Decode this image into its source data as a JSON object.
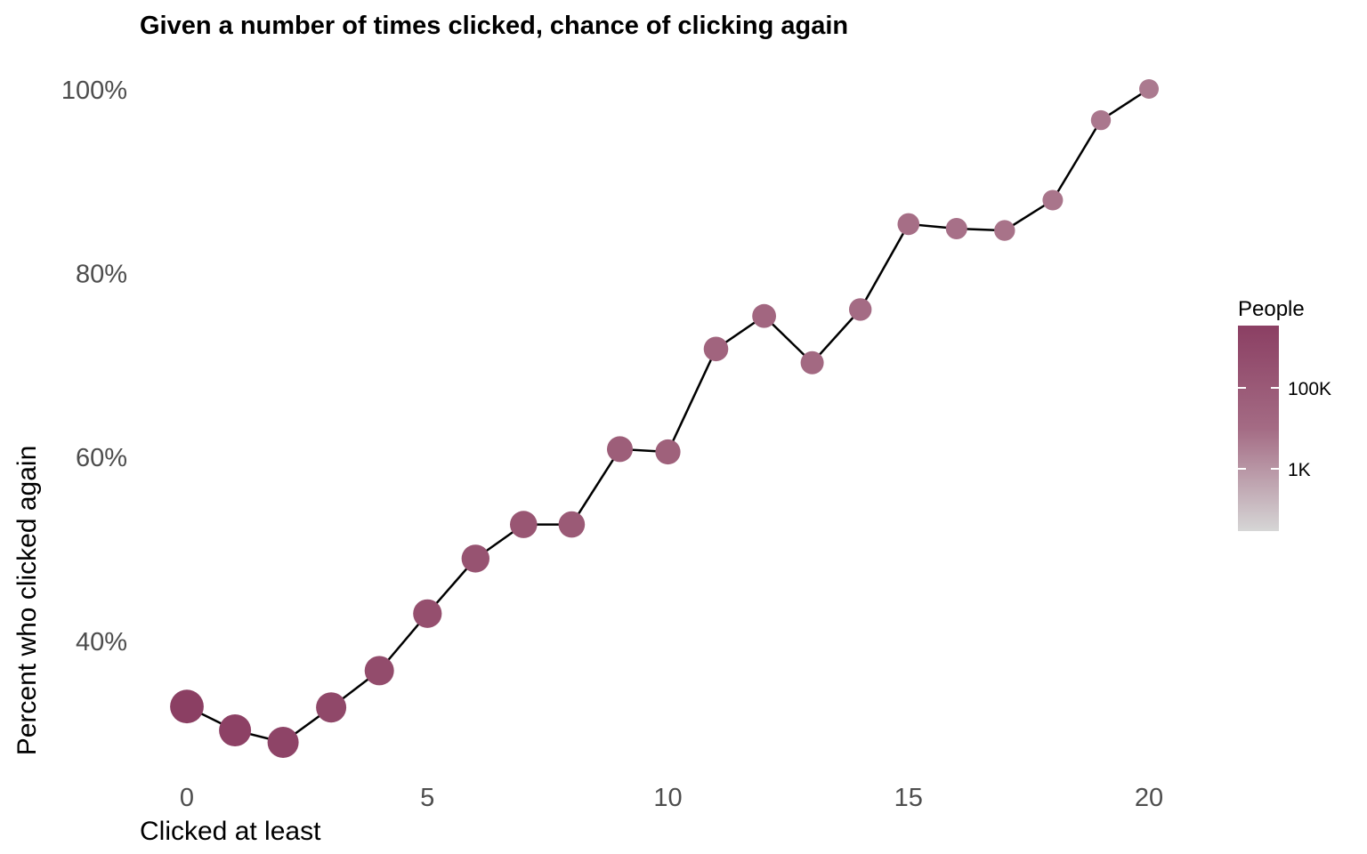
{
  "chart_data": {
    "type": "scatter",
    "title": "Given a number of times clicked, chance of clicking again",
    "xlabel": "Clicked at least",
    "ylabel": "Percent who clicked again",
    "xlim": [
      -0.5,
      21
    ],
    "ylim": [
      26,
      101
    ],
    "x_ticks": [
      0,
      5,
      10,
      15,
      20
    ],
    "x_tick_labels": [
      "0",
      "5",
      "10",
      "15",
      "20"
    ],
    "y_ticks": [
      40,
      60,
      80,
      100
    ],
    "y_tick_labels": [
      "40%",
      "60%",
      "80%",
      "100%"
    ],
    "grid": false,
    "connected_line": true,
    "line_color": "#000000",
    "x": [
      0,
      1,
      2,
      3,
      4,
      5,
      6,
      7,
      8,
      9,
      10,
      11,
      12,
      13,
      14,
      15,
      16,
      17,
      18,
      19,
      20
    ],
    "y": [
      32.8,
      30.2,
      28.9,
      32.7,
      36.7,
      42.9,
      48.9,
      52.6,
      52.6,
      60.8,
      60.5,
      71.7,
      75.3,
      70.2,
      76.0,
      85.3,
      84.8,
      84.6,
      87.9,
      96.6,
      100.0
    ],
    "people": [
      1000000,
      400000,
      250000,
      160000,
      100000,
      65000,
      45000,
      30000,
      20000,
      14000,
      10000,
      7000,
      5000,
      3500,
      2500,
      1800,
      1300,
      1000,
      800,
      600,
      500
    ],
    "point_colors": [
      "#8b3f63",
      "#8d4165",
      "#8e4467",
      "#904869",
      "#934c6c",
      "#954f6e",
      "#975371",
      "#995673",
      "#9b5a76",
      "#9d5e79",
      "#9f617b",
      "#a1647e",
      "#a26680",
      "#a36982",
      "#a46b84",
      "#a66e86",
      "#a77088",
      "#a87389",
      "#a9758b",
      "#aa778d",
      "#ab7a8f"
    ],
    "legend": {
      "title": "People",
      "placement": "right",
      "scale": "log",
      "labels": [
        "100K",
        "1K"
      ],
      "color_high": "#8b3f63",
      "color_low": "#d6d6d6"
    }
  }
}
